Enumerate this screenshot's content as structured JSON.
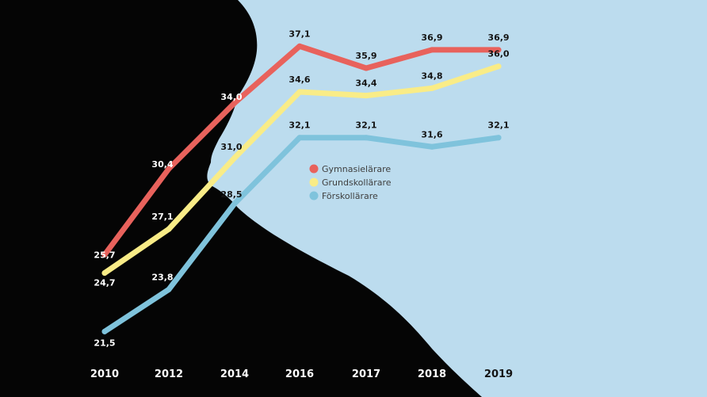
{
  "colors": {
    "background": "#bcdcee",
    "silhouette": "#050505",
    "label_on_dark": "#ffffff",
    "label_on_light": "#141414",
    "legend_text": "#3f3f3f"
  },
  "chart_data": {
    "type": "line",
    "x": [
      "2010",
      "2012",
      "2014",
      "2016",
      "2017",
      "2018",
      "2019"
    ],
    "ylim": [
      20,
      38.5
    ],
    "grid": false,
    "legend_position": "center",
    "series": [
      {
        "name": "Gymnasielärare",
        "color": "#e8625c",
        "values": [
          25.7,
          30.4,
          34.0,
          37.1,
          35.9,
          36.9,
          36.9
        ],
        "labels": [
          "25,7",
          "30,4",
          "34,0",
          "37,1",
          "35,9",
          "36,9",
          "36,9"
        ]
      },
      {
        "name": "Grundskollärare",
        "color": "#f9ec87",
        "values": [
          24.7,
          27.1,
          31.0,
          34.6,
          34.4,
          34.8,
          36.0
        ],
        "labels": [
          "24,7",
          "27,1",
          "31,0",
          "34,6",
          "34,4",
          "34,8",
          "36,0"
        ]
      },
      {
        "name": "Förskollärare",
        "color": "#7fc3dc",
        "values": [
          21.5,
          23.8,
          28.5,
          32.1,
          32.1,
          31.6,
          32.1
        ],
        "labels": [
          "21,5",
          "23,8",
          "28,5",
          "32,1",
          "32,1",
          "31,6",
          "32,1"
        ]
      }
    ]
  }
}
